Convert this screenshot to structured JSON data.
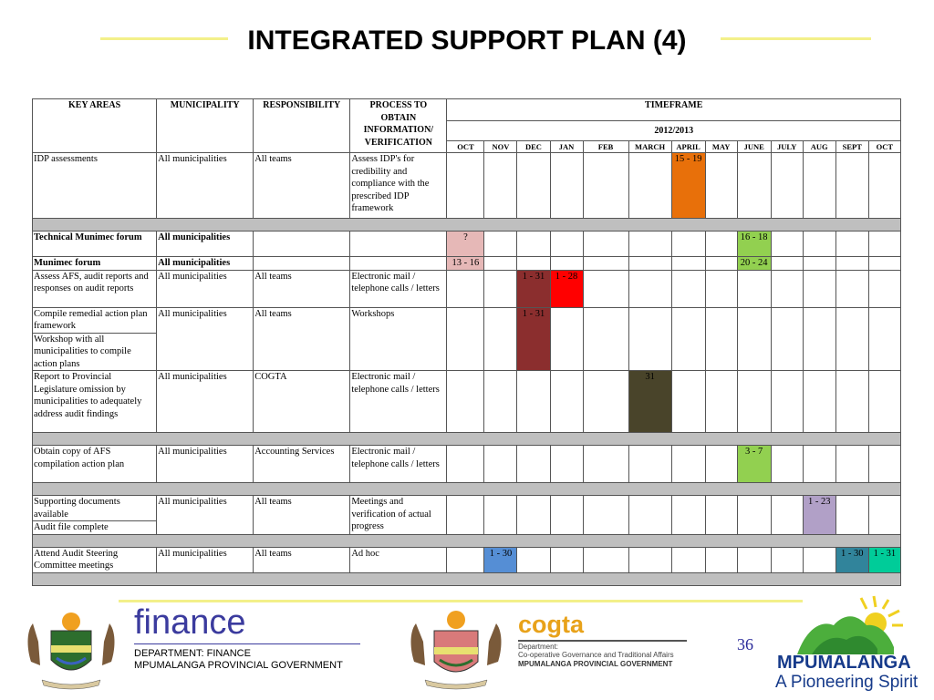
{
  "title": "INTEGRATED SUPPORT PLAN (4)",
  "table": {
    "headers": {
      "key_areas": "KEY AREAS",
      "municipality": "MUNICIPALITY",
      "responsibility": "RESPONSIBILITY",
      "process": "PROCESS TO OBTAIN INFORMATION/ VERIFICATION",
      "timeframe": "TIMEFRAME",
      "year": "2012/2013",
      "months": [
        "OCT",
        "NOV",
        "DEC",
        "JAN",
        "FEB",
        "MARCH",
        "APRIL",
        "MAY",
        "JUNE",
        "JULY",
        "AUG",
        "SEPT",
        "OCT"
      ]
    },
    "rows": {
      "idp": {
        "key": "IDP assessments",
        "muni": "All municipalities",
        "resp": "All teams",
        "proc": "Assess IDP's for credibility and compliance with the prescribed IDP framework",
        "april": "15 - 19"
      },
      "tech": {
        "key": "Technical Munimec forum",
        "muni": "All municipalities",
        "oct": "?",
        "june": "16 - 18"
      },
      "munimec": {
        "key": "Munimec forum",
        "muni": "All municipalities",
        "oct": "13 - 16",
        "june": "20 - 24"
      },
      "afs": {
        "key": "Assess AFS, audit reports and responses on audit reports",
        "muni": "All municipalities",
        "resp": "All teams",
        "proc": "Electronic mail / telephone calls / letters",
        "dec": "1 - 31",
        "jan": "1 - 28"
      },
      "remedial": {
        "key": "Compile remedial action plan framework",
        "key2": "Workshop with all municipalities to compile action plans",
        "muni": "All municipalities",
        "resp": "All teams",
        "proc": "Workshops",
        "dec": "1 - 31"
      },
      "report": {
        "key": "Report to Provincial Legislature omission by municipalities to adequately address audit findings",
        "muni": "All municipalities",
        "resp": "COGTA",
        "proc": "Electronic mail / telephone calls / letters",
        "march": "31"
      },
      "afs_copy": {
        "key": "Obtain copy of AFS compilation action plan",
        "muni": "All municipalities",
        "resp": "Accounting Services",
        "proc": "Electronic mail / telephone calls / letters",
        "june": "3 - 7"
      },
      "support": {
        "key": "Supporting documents available",
        "key2": "Audit file complete",
        "muni": "All municipalities",
        "resp": "All teams",
        "proc": "Meetings and verification of actual progress",
        "aug": "1 - 23"
      },
      "steering": {
        "key": "Attend Audit Steering Committee meetings",
        "muni": "All municipalities",
        "resp": "All teams",
        "proc": "Ad hoc",
        "nov": "1 - 30",
        "sept": "1 - 30",
        "oct2": "1 - 31"
      }
    }
  },
  "colors": {
    "april": "#e8700a",
    "tech_oct": "#e6b8b7",
    "june_green": "#92d050",
    "dec_dark": "#8b2e2e",
    "jan_red": "#ff0000",
    "march_dark": "#49442a",
    "aug_lilac": "#b1a0c7",
    "nov_blue": "#558ed5",
    "sept_teal": "#31849b",
    "oct_green": "#00cc99"
  },
  "footer": {
    "finance": "finance",
    "dept_line1": "DEPARTMENT: FINANCE",
    "dept_line2": "MPUMALANGA PROVINCIAL GOVERNMENT",
    "cogta": "cogta",
    "cogta_line1": "Department:",
    "cogta_line2": "Co-operative Governance and Traditional Affairs",
    "cogta_line3": "MPUMALANGA PROVINCIAL GOVERNMENT",
    "page_number": "36",
    "province": "MPUMALANGA",
    "slogan": "A Pioneering Spirit"
  }
}
